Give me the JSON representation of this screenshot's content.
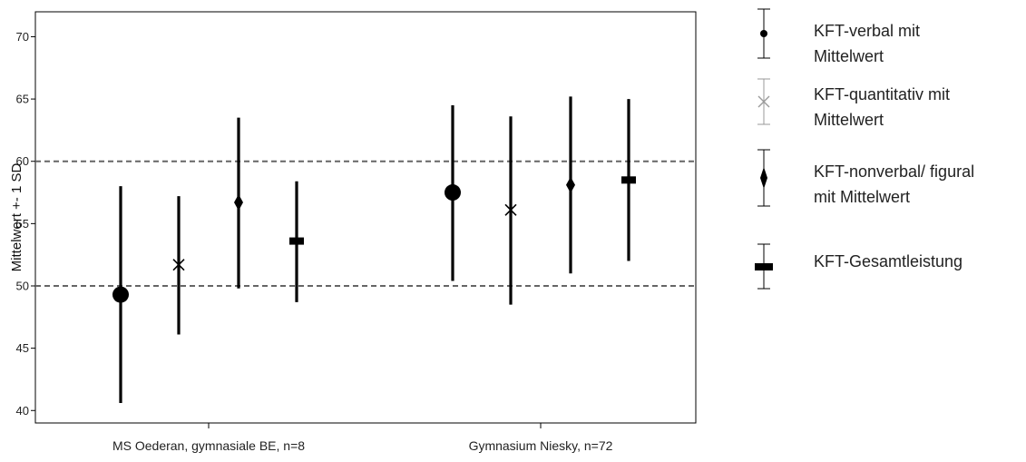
{
  "chart_data": {
    "type": "errorbar",
    "ylabel": "Mittelwert +- 1 SD",
    "ylim": [
      39,
      72
    ],
    "yticks": [
      40,
      45,
      50,
      55,
      60,
      65,
      70
    ],
    "categories": [
      "MS Oederan, gymnasiale BE, n=8",
      "Gymnasium Niesky, n=72"
    ],
    "reference_lines": [
      50,
      60
    ],
    "series": [
      {
        "name": "KFT-verbal mit Mittelwert",
        "marker": "circle",
        "points": [
          {
            "mean": 49.3,
            "low": 40.6,
            "high": 58.0
          },
          {
            "mean": 57.5,
            "low": 50.4,
            "high": 64.5
          }
        ]
      },
      {
        "name": "KFT-quantitativ mit Mittelwert",
        "marker": "x",
        "points": [
          {
            "mean": 51.7,
            "low": 46.1,
            "high": 57.2
          },
          {
            "mean": 56.1,
            "low": 48.5,
            "high": 63.6
          }
        ]
      },
      {
        "name": "KFT-nonverbal/ figural mit Mittelwert",
        "marker": "diamond",
        "points": [
          {
            "mean": 56.7,
            "low": 49.8,
            "high": 63.5
          },
          {
            "mean": 58.1,
            "low": 51.0,
            "high": 65.2
          }
        ]
      },
      {
        "name": "KFT-Gesamtleistung",
        "marker": "bar",
        "points": [
          {
            "mean": 53.6,
            "low": 48.7,
            "high": 58.4
          },
          {
            "mean": 58.5,
            "low": 52.0,
            "high": 65.0
          }
        ]
      }
    ],
    "legend": {
      "position": "right",
      "items": [
        [
          "KFT-verbal mit",
          "Mittelwert"
        ],
        [
          "KFT-quantitativ mit",
          "Mittelwert"
        ],
        [
          "KFT-nonverbal/ figural",
          "mit Mittelwert"
        ],
        [
          "KFT-Gesamtleistung"
        ]
      ]
    },
    "colors": {
      "series": "#000000",
      "quantitativ_legend": "#9a9a9a",
      "reference_line": "#666666"
    }
  }
}
